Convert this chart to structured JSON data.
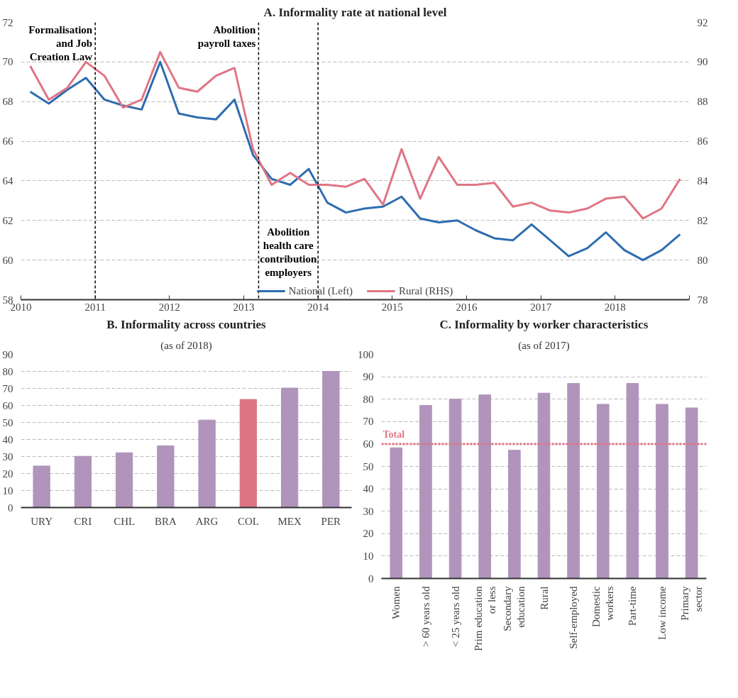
{
  "chart_data": [
    {
      "type": "line",
      "title": "A. Informality rate at national level",
      "x": [
        2010.125,
        2010.375,
        2010.625,
        2010.875,
        2011.125,
        2011.375,
        2011.625,
        2011.875,
        2012.125,
        2012.375,
        2012.625,
        2012.875,
        2013.125,
        2013.375,
        2013.625,
        2013.875,
        2014.125,
        2014.375,
        2014.625,
        2014.875,
        2015.125,
        2015.375,
        2015.625,
        2015.875,
        2016.125,
        2016.375,
        2016.625,
        2016.875,
        2017.125,
        2017.375,
        2017.625,
        2017.875,
        2018.125,
        2018.375,
        2018.625,
        2018.875
      ],
      "series": [
        {
          "name": "National (Left)",
          "color": "#2e6db0",
          "values": [
            68.5,
            67.9,
            68.6,
            69.2,
            68.1,
            67.8,
            67.6,
            70.0,
            67.4,
            67.2,
            67.1,
            68.1,
            65.3,
            64.1,
            63.8,
            64.6,
            62.9,
            62.4,
            62.6,
            62.7,
            63.2,
            62.1,
            61.9,
            62.0,
            61.5,
            61.1,
            61.0,
            61.8,
            61.0,
            60.2,
            60.6,
            61.4,
            60.5,
            60.0,
            60.5,
            61.3
          ]
        },
        {
          "name": "Rural (RHS)",
          "color": "#e07585",
          "axis": "y2",
          "values": [
            89.8,
            88.1,
            88.7,
            90.0,
            89.3,
            87.7,
            88.1,
            90.5,
            88.7,
            88.5,
            89.3,
            89.7,
            85.6,
            83.8,
            84.4,
            83.8,
            83.8,
            83.7,
            84.1,
            82.8,
            85.6,
            83.1,
            85.2,
            83.8,
            83.8,
            83.9,
            82.7,
            82.9,
            82.5,
            82.4,
            82.6,
            83.1,
            83.2,
            82.1,
            82.6,
            84.1
          ]
        }
      ],
      "xlim": [
        2010,
        2019
      ],
      "xticks": [
        2010,
        2011,
        2012,
        2013,
        2014,
        2015,
        2016,
        2017,
        2018,
        {
          "value": 2019,
          "label": null
        }
      ],
      "ylim": [
        58,
        72
      ],
      "yticks": [
        58,
        60,
        62,
        64,
        66,
        68,
        70,
        72
      ],
      "y2lim": [
        78,
        92
      ],
      "y2ticks": [
        78,
        80,
        82,
        84,
        86,
        88,
        90,
        92
      ],
      "grid": "y",
      "legend": "bottom",
      "line_style": "solid",
      "ref_lines": [
        {
          "axis": "x",
          "value": 2011,
          "color": "#000000",
          "line_style": "dashed",
          "label": "Formalisation\nand Job\nCreation Law"
        },
        {
          "axis": "x",
          "value": 2013.2,
          "color": "#000000",
          "line_style": "dashed",
          "label": "Abolition\npayroll taxes"
        },
        {
          "axis": "x",
          "value": 2014,
          "color": "#000000",
          "line_style": "dashed",
          "label": "Abolition\nhealth care\ncontribution\nemployers"
        }
      ]
    },
    {
      "type": "bar",
      "title": "B. Informality across countries",
      "subtitle": "(as of 2018)",
      "categories": [
        "URY",
        "CRI",
        "CHL",
        "BRA",
        "ARG",
        "COL",
        "MEX",
        "PER"
      ],
      "values": [
        24.4,
        30.1,
        32.2,
        36.3,
        51.4,
        63.5,
        70.2,
        80.0
      ],
      "colors": [
        "#b094bb",
        "#b094bb",
        "#b094bb",
        "#b094bb",
        "#b094bb",
        "#dc7483",
        "#b094bb",
        "#b094bb"
      ],
      "ylim": [
        0,
        90
      ],
      "yticks": [
        0,
        10,
        20,
        30,
        40,
        50,
        60,
        70,
        80,
        90
      ],
      "grid": "y"
    },
    {
      "type": "bar",
      "title": "C. Informality by worker characteristics",
      "subtitle": "(as of 2017)",
      "categories": [
        "Women",
        "> 60 years old",
        "< 25 years old",
        "Prim education\nor less",
        "Secondary\neducation",
        "Rural",
        "Self-employed",
        "Domestic\nworkers",
        "Part-time",
        "Low income",
        "Primary\nsector"
      ],
      "values": [
        58.3,
        77.2,
        80.0,
        81.9,
        57.2,
        82.7,
        87.0,
        77.7,
        87.0,
        77.7,
        76.1
      ],
      "colors": [
        "#b094bb",
        "#b094bb",
        "#b094bb",
        "#b094bb",
        "#b094bb",
        "#b094bb",
        "#b094bb",
        "#b094bb",
        "#b094bb",
        "#b094bb",
        "#b094bb"
      ],
      "ylim": [
        0,
        100
      ],
      "yticks": [
        0,
        10,
        20,
        30,
        40,
        50,
        60,
        70,
        80,
        90,
        100
      ],
      "grid": "y",
      "ref_lines": [
        {
          "axis": "y",
          "value": 60,
          "label": "Total",
          "color": "#e07585",
          "line_style": "dotted"
        }
      ]
    }
  ]
}
